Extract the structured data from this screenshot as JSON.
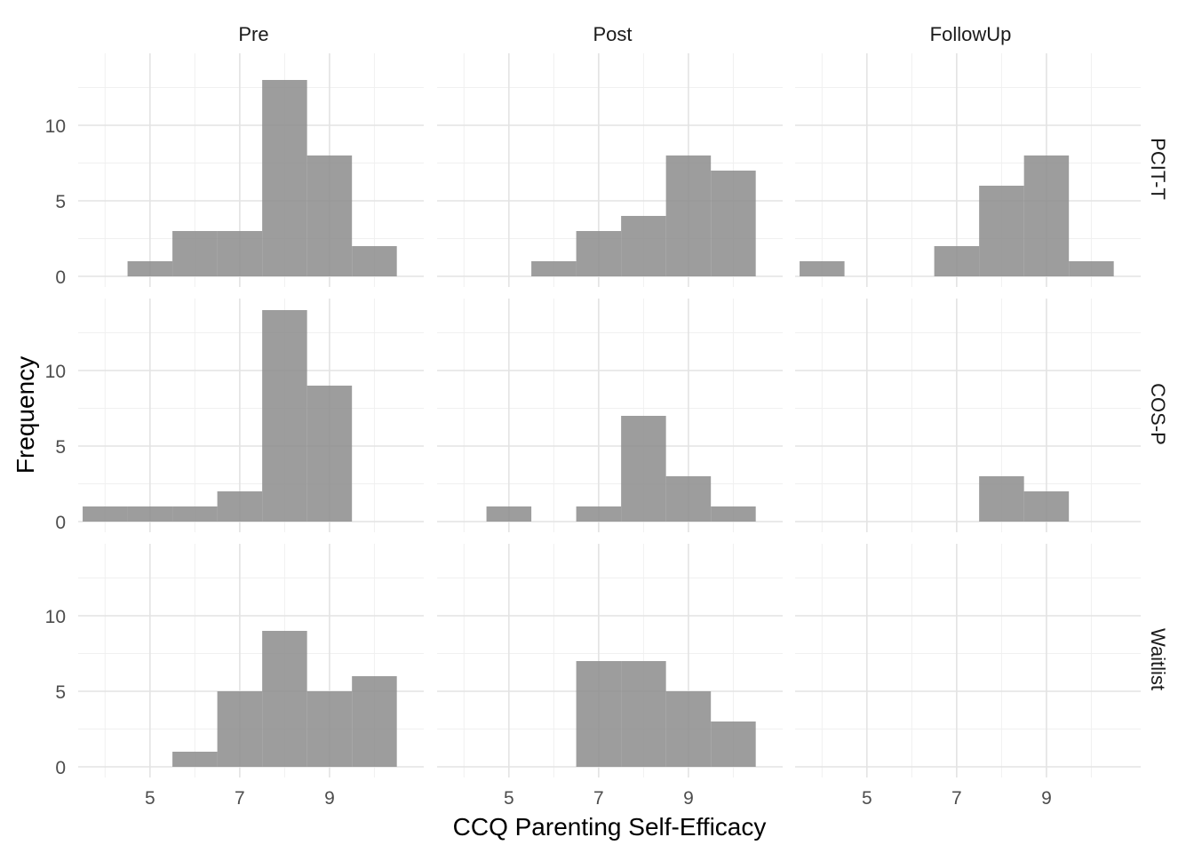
{
  "chart_data": {
    "type": "bar",
    "subtype": "faceted-histogram",
    "xlabel": "CCQ Parenting Self-Efficacy",
    "ylabel": "Frequency",
    "xlim": [
      3.4,
      11.1
    ],
    "ylim": [
      0,
      14.7
    ],
    "x_ticks": [
      5,
      7,
      9
    ],
    "y_ticks": [
      0,
      5,
      10
    ],
    "bin_width": 1,
    "bar_color": "#8c8c8c",
    "bar_opacity": 0.85,
    "grid": true,
    "facet_columns": [
      "Pre",
      "Post",
      "FollowUp"
    ],
    "facet_rows": [
      "PCIT-T",
      "COS-P",
      "Waitlist"
    ],
    "panels": [
      {
        "row": "PCIT-T",
        "column": "Pre",
        "bins": [
          {
            "x": 5,
            "count": 1
          },
          {
            "x": 6,
            "count": 3
          },
          {
            "x": 7,
            "count": 3
          },
          {
            "x": 8,
            "count": 13
          },
          {
            "x": 9,
            "count": 8
          },
          {
            "x": 10,
            "count": 2
          }
        ]
      },
      {
        "row": "PCIT-T",
        "column": "Post",
        "bins": [
          {
            "x": 6,
            "count": 1
          },
          {
            "x": 7,
            "count": 3
          },
          {
            "x": 8,
            "count": 4
          },
          {
            "x": 9,
            "count": 8
          },
          {
            "x": 10,
            "count": 7
          }
        ]
      },
      {
        "row": "PCIT-T",
        "column": "FollowUp",
        "bins": [
          {
            "x": 4,
            "count": 1
          },
          {
            "x": 7,
            "count": 2
          },
          {
            "x": 8,
            "count": 6
          },
          {
            "x": 9,
            "count": 8
          },
          {
            "x": 10,
            "count": 1
          }
        ]
      },
      {
        "row": "COS-P",
        "column": "Pre",
        "bins": [
          {
            "x": 4,
            "count": 1
          },
          {
            "x": 5,
            "count": 1
          },
          {
            "x": 6,
            "count": 1
          },
          {
            "x": 7,
            "count": 2
          },
          {
            "x": 8,
            "count": 14
          },
          {
            "x": 9,
            "count": 9
          }
        ]
      },
      {
        "row": "COS-P",
        "column": "Post",
        "bins": [
          {
            "x": 5,
            "count": 1
          },
          {
            "x": 7,
            "count": 1
          },
          {
            "x": 8,
            "count": 7
          },
          {
            "x": 9,
            "count": 3
          },
          {
            "x": 10,
            "count": 1
          }
        ]
      },
      {
        "row": "COS-P",
        "column": "FollowUp",
        "bins": [
          {
            "x": 8,
            "count": 3
          },
          {
            "x": 9,
            "count": 2
          }
        ]
      },
      {
        "row": "Waitlist",
        "column": "Pre",
        "bins": [
          {
            "x": 6,
            "count": 1
          },
          {
            "x": 7,
            "count": 5
          },
          {
            "x": 8,
            "count": 9
          },
          {
            "x": 9,
            "count": 5
          },
          {
            "x": 10,
            "count": 6
          }
        ]
      },
      {
        "row": "Waitlist",
        "column": "Post",
        "bins": [
          {
            "x": 7,
            "count": 7
          },
          {
            "x": 8,
            "count": 7
          },
          {
            "x": 9,
            "count": 5
          },
          {
            "x": 10,
            "count": 3
          }
        ]
      },
      {
        "row": "Waitlist",
        "column": "FollowUp",
        "bins": []
      }
    ]
  }
}
